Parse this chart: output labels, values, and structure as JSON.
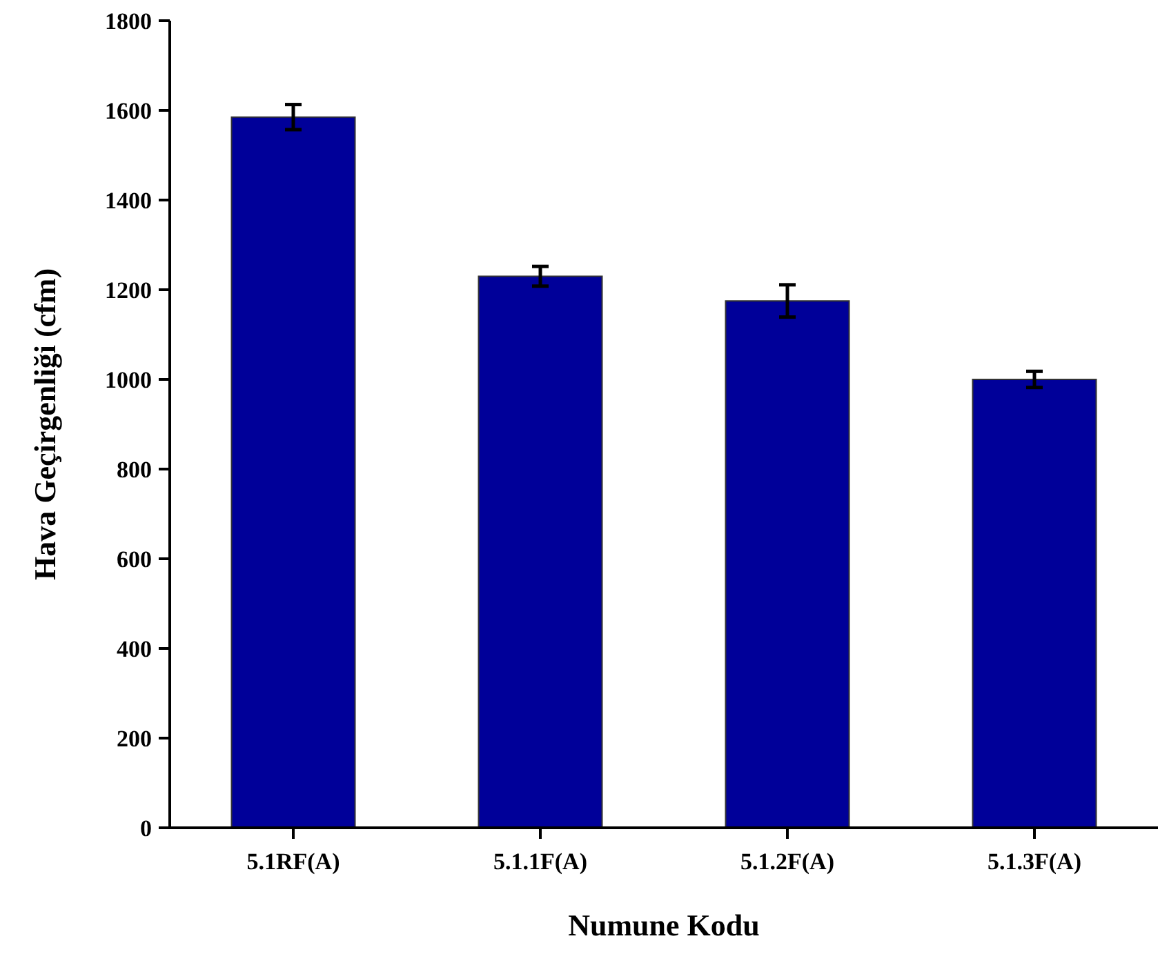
{
  "chart_data": {
    "type": "bar",
    "xlabel": "Numune Kodu",
    "ylabel": "Hava Geçirgenliği (cfm)",
    "categories": [
      "5.1RF(A)",
      "5.1.1F(A)",
      "5.1.2F(A)",
      "5.1.3F(A)"
    ],
    "values": [
      1585,
      1230,
      1175,
      1000
    ],
    "errors": [
      28,
      22,
      36,
      18
    ],
    "color": "#000099",
    "ylim": [
      0,
      1800
    ],
    "yticks": [
      0,
      200,
      400,
      600,
      800,
      1000,
      1200,
      1400,
      1600,
      1800
    ],
    "grid": false
  }
}
